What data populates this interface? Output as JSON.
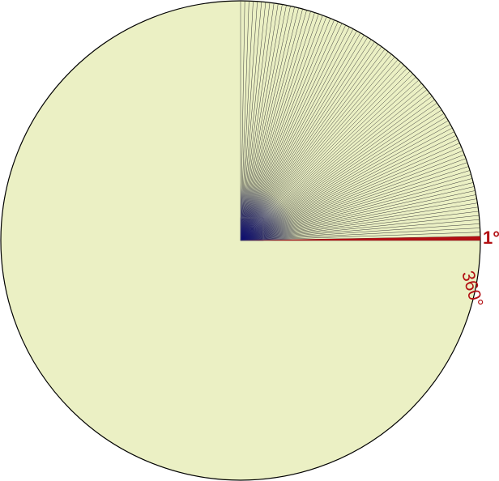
{
  "diagram": {
    "total_degrees": 360,
    "marked_degrees": 90,
    "highlight_angle": 1,
    "labels": {
      "one_degree": "1°",
      "full_circle": "360°"
    },
    "colors": {
      "disc_fill": "#ebf0c4",
      "disc_stroke": "#000000",
      "ray_stroke": "#3a3a3a",
      "center_fill": "#0a0a6e",
      "highlight": "#b20f12",
      "label": "#b20f12"
    }
  }
}
